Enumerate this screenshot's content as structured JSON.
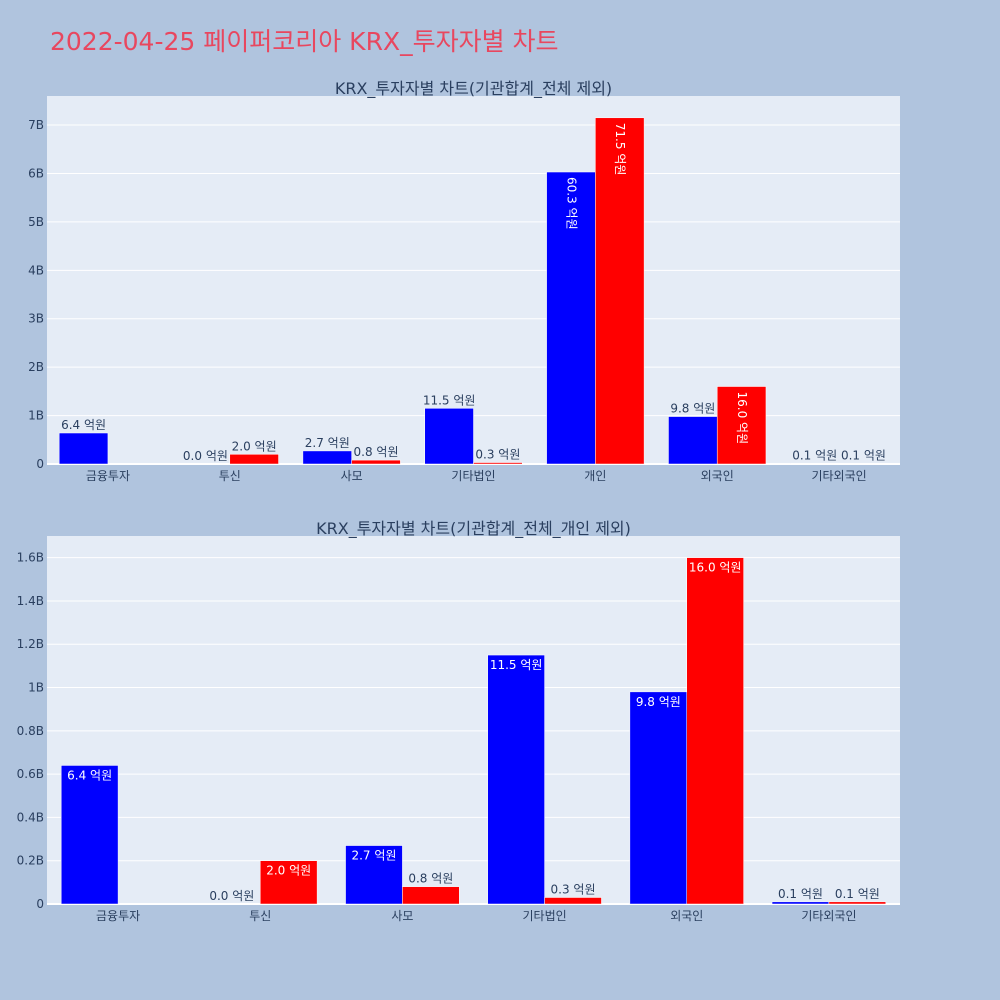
{
  "page_title": "2022-04-25 페이퍼코리아 KRX_투자자별 차트",
  "colors": {
    "buy": "#0000ff",
    "sell": "#ff0000",
    "plot_bg": "#e5ecf6",
    "page_bg": "#b0c4de",
    "title": "#e8475f"
  },
  "chart_data": [
    {
      "type": "bar",
      "title": "KRX_투자자별 차트(기관합계_전체 제외)",
      "categories": [
        "금융투자",
        "투신",
        "사모",
        "기타법인",
        "개인",
        "외국인",
        "기타외국인"
      ],
      "series": [
        {
          "color": "#0000ff",
          "values": [
            640000000,
            0,
            270000000,
            1150000000,
            6030000000,
            980000000,
            10000000
          ],
          "labels": [
            "6.4 억원",
            "0.0 억원",
            "2.7 억원",
            "11.5 억원",
            "60.3 억원",
            "9.8 억원",
            "0.1 억원"
          ]
        },
        {
          "color": "#ff0000",
          "values": [
            0,
            200000000,
            80000000,
            30000000,
            7150000000,
            1600000000,
            10000000
          ],
          "labels": [
            "",
            "2.0 억원",
            "0.8 억원",
            "0.3 억원",
            "71.5 억원",
            "16.0 억원",
            "0.1 억원"
          ]
        }
      ],
      "ylim": [
        0,
        7600000000
      ],
      "yticks": [
        0,
        1000000000,
        2000000000,
        3000000000,
        4000000000,
        5000000000,
        6000000000,
        7000000000
      ],
      "ytick_labels": [
        "0",
        "1B",
        "2B",
        "3B",
        "4B",
        "5B",
        "6B",
        "7B"
      ],
      "grid": true
    },
    {
      "type": "bar",
      "title": "KRX_투자자별 차트(기관합계_전체_개인 제외)",
      "categories": [
        "금융투자",
        "투신",
        "사모",
        "기타법인",
        "외국인",
        "기타외국인"
      ],
      "series": [
        {
          "color": "#0000ff",
          "values": [
            640000000,
            0,
            270000000,
            1150000000,
            980000000,
            10000000
          ],
          "labels": [
            "6.4 억원",
            "0.0 억원",
            "2.7 억원",
            "11.5 억원",
            "9.8 억원",
            "0.1 억원"
          ]
        },
        {
          "color": "#ff0000",
          "values": [
            0,
            200000000,
            80000000,
            30000000,
            1600000000,
            10000000
          ],
          "labels": [
            "",
            "2.0 억원",
            "0.8 억원",
            "0.3 억원",
            "16.0 억원",
            "0.1 억원"
          ]
        }
      ],
      "ylim": [
        0,
        1700000000
      ],
      "yticks": [
        0,
        200000000,
        400000000,
        600000000,
        800000000,
        1000000000,
        1200000000,
        1400000000,
        1600000000
      ],
      "ytick_labels": [
        "0",
        "0.2B",
        "0.4B",
        "0.6B",
        "0.8B",
        "1B",
        "1.2B",
        "1.4B",
        "1.6B"
      ],
      "grid": true
    }
  ]
}
